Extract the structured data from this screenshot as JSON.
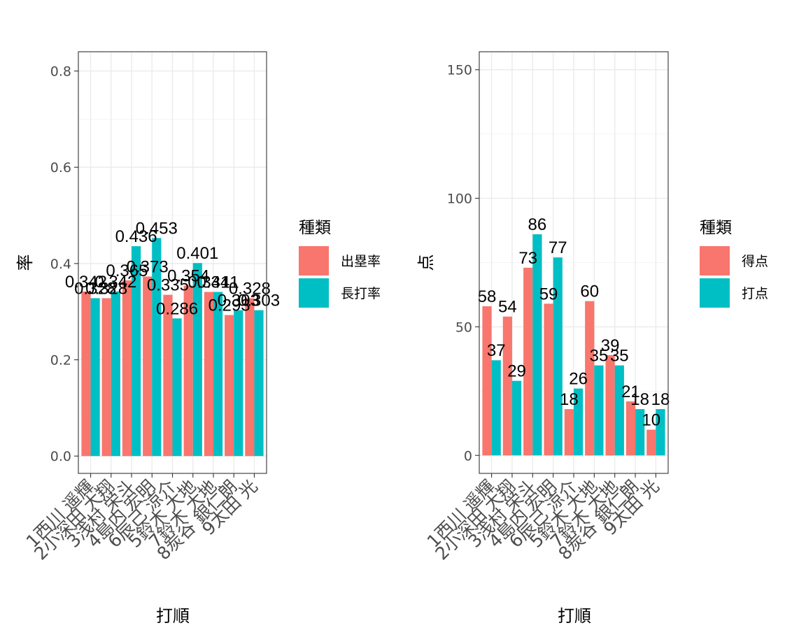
{
  "chart_data": [
    {
      "type": "bar",
      "title": "",
      "xlabel": "打順",
      "ylabel": "率",
      "ylim": [
        -0.036,
        0.84
      ],
      "yticks": [
        0.0,
        0.2,
        0.4,
        0.6,
        0.8
      ],
      "ytick_labels": [
        "0.0",
        "0.2",
        "0.4",
        "0.6",
        "0.8"
      ],
      "grid": true,
      "legend_position": "right",
      "legend_title": "種類",
      "categories": [
        "1西川 遥輝",
        "2小深田 大翔",
        "3浅村 栄斗",
        "4島内 宏明",
        "6辰己 涼介",
        "5鈴木 大地",
        "7鈴木 大地",
        "8炭谷 銀仁朗",
        "9太田 光"
      ],
      "series": [
        {
          "name": "出塁率",
          "color": "#F8766D",
          "values": [
            0.342,
            0.328,
            0.365,
            0.373,
            0.335,
            0.354,
            0.341,
            0.293,
            0.328
          ]
        },
        {
          "name": "長打率",
          "color": "#00BFC4",
          "values": [
            0.328,
            0.342,
            0.436,
            0.453,
            0.286,
            0.401,
            0.341,
            0.303,
            0.303
          ]
        }
      ]
    },
    {
      "type": "bar",
      "title": "",
      "xlabel": "打順",
      "ylabel": "点",
      "ylim": [
        -7,
        157
      ],
      "yticks": [
        0,
        50,
        100,
        150
      ],
      "ytick_labels": [
        "0",
        "50",
        "100",
        "150"
      ],
      "grid": true,
      "legend_position": "right",
      "legend_title": "種類",
      "categories": [
        "1西川 遥輝",
        "2小深田 大翔",
        "3浅村 栄斗",
        "4島内 宏明",
        "6辰己 涼介",
        "5鈴木 大地",
        "7鈴木 大地",
        "8炭谷 銀仁朗",
        "9太田 光"
      ],
      "series": [
        {
          "name": "得点",
          "color": "#F8766D",
          "values": [
            58,
            54,
            73,
            59,
            18,
            60,
            39,
            21,
            10
          ]
        },
        {
          "name": "打点",
          "color": "#00BFC4",
          "values": [
            37,
            29,
            86,
            77,
            26,
            35,
            35,
            18,
            18
          ]
        }
      ]
    }
  ]
}
